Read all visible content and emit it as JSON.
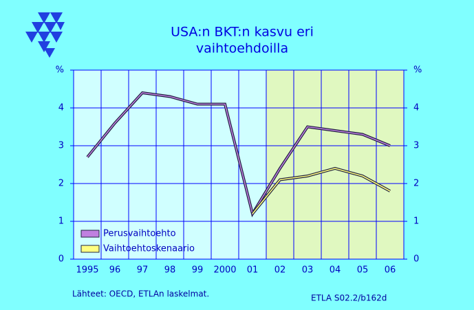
{
  "chart_data": {
    "type": "line",
    "title": [
      "USA:n  BKT:n  kasvu  eri",
      "vaihtoehdoilla"
    ],
    "categories": [
      "1995",
      "96",
      "97",
      "98",
      "99",
      "2000",
      "01",
      "02",
      "03",
      "04",
      "05",
      "06"
    ],
    "series": [
      {
        "name": "Perusvaihtoehto",
        "color": "#c080e0",
        "values": [
          2.7,
          3.6,
          4.4,
          4.3,
          4.1,
          4.1,
          1.2,
          2.4,
          3.5,
          3.4,
          3.3,
          3.0
        ]
      },
      {
        "name": "Vaihtoehtoskenaario",
        "color": "#ffff80",
        "values": [
          null,
          null,
          null,
          null,
          null,
          null,
          1.2,
          2.1,
          2.2,
          2.4,
          2.2,
          1.8
        ]
      }
    ],
    "ylim": [
      0,
      5
    ],
    "yticks": [
      0,
      1,
      2,
      3,
      4,
      {
        "value": 5,
        "label": "%"
      }
    ],
    "grid": true,
    "forecast_from": "02",
    "legend": "lower left",
    "source": "Lähteet:   OECD, ETLAn laskelmat.",
    "code": "ETLA S02.2/b162d"
  }
}
